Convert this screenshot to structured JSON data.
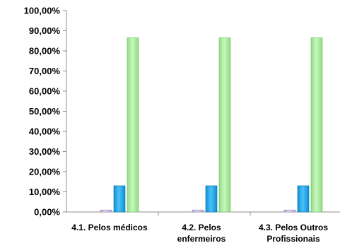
{
  "chart_data": {
    "type": "bar",
    "categories": [
      [
        "4.1. Pelos médicos"
      ],
      [
        "4.2. Pelos",
        "enfermeiros"
      ],
      [
        "4.3. Pelos Outros",
        "Profissionais"
      ]
    ],
    "series": [
      {
        "values": [
          1.0,
          1.0,
          1.0
        ],
        "color": "#c9b8e0"
      },
      {
        "values": [
          13.0,
          13.0,
          13.0
        ],
        "color": "#1aa3e8"
      },
      {
        "values": [
          86.5,
          86.5,
          86.5
        ],
        "color": "#a6ee9a"
      }
    ],
    "ylim": [
      0,
      100
    ],
    "yticks": [
      "0,00%",
      "10,00%",
      "20,00%",
      "30,00%",
      "40,00%",
      "50,00%",
      "60,00%",
      "70,00%",
      "80,00%",
      "90,00%",
      "100,00%"
    ],
    "grid": false,
    "legend": "none"
  }
}
